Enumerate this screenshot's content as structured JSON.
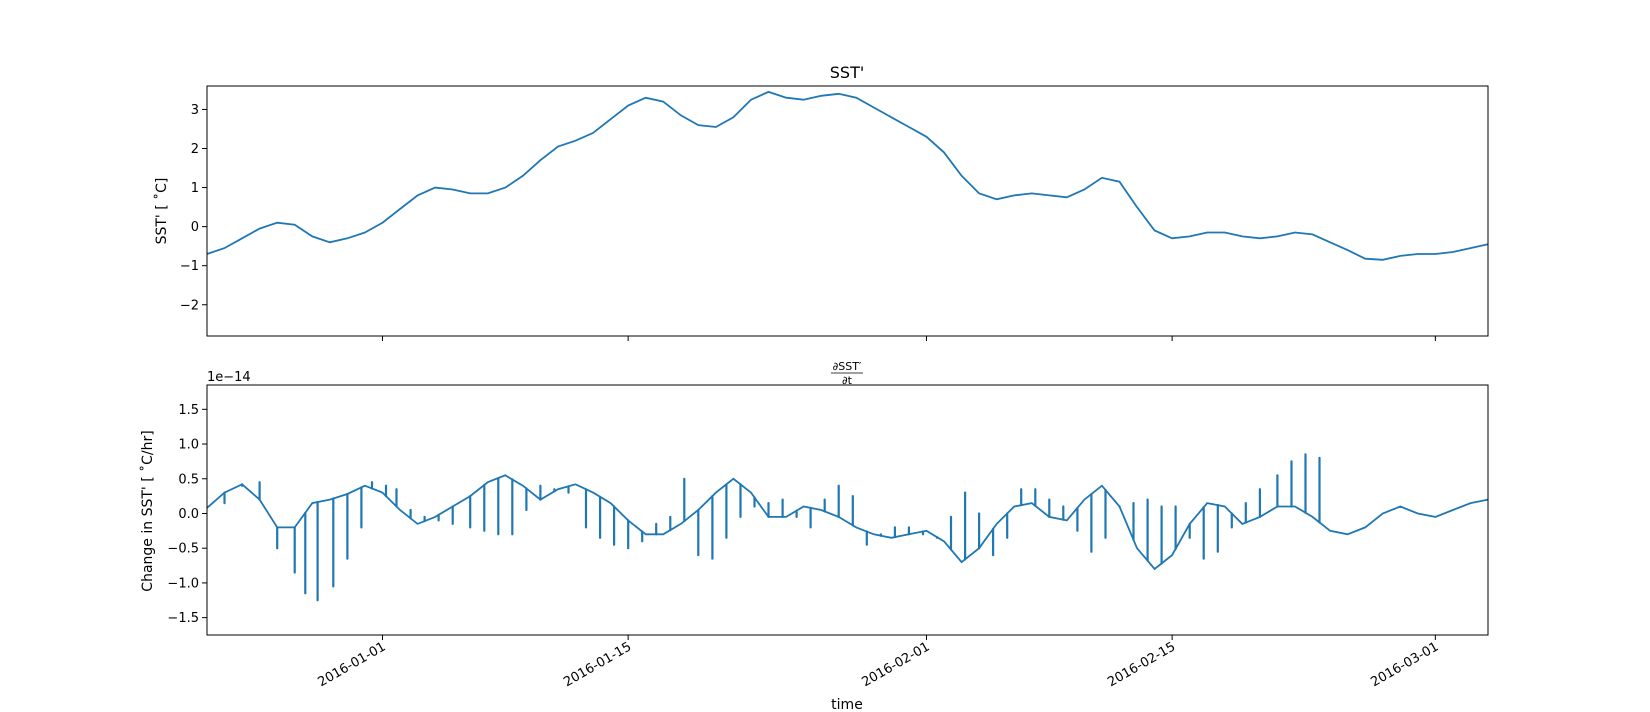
{
  "chart_data": [
    {
      "type": "line",
      "title": "SST'",
      "xlabel": "",
      "ylabel": "SST' [$^\\circ$C]",
      "ylabel_display": "SST' [ ˚C]",
      "ylim": [
        -2.8,
        3.6
      ],
      "yticks": [
        -2,
        -1,
        0,
        1,
        2,
        3
      ],
      "ytick_labels": [
        "−2",
        "−1",
        "0",
        "1",
        "2",
        "3"
      ],
      "xlim": [
        "2015-12-22",
        "2016-03-04"
      ],
      "xticks": [
        "2016-01-01",
        "2016-01-15",
        "2016-02-01",
        "2016-02-15",
        "2016-03-01"
      ],
      "grid": false,
      "color": "#1f77b4",
      "series": [
        {
          "x": [
            "2015-12-22",
            "2015-12-23",
            "2015-12-24",
            "2015-12-25",
            "2015-12-26",
            "2015-12-27",
            "2015-12-28",
            "2015-12-29",
            "2015-12-30",
            "2015-12-31",
            "2016-01-01",
            "2016-01-02",
            "2016-01-03",
            "2016-01-04",
            "2016-01-05",
            "2016-01-06",
            "2016-01-07",
            "2016-01-08",
            "2016-01-09",
            "2016-01-10",
            "2016-01-11",
            "2016-01-12",
            "2016-01-13",
            "2016-01-14",
            "2016-01-15",
            "2016-01-16",
            "2016-01-17",
            "2016-01-18",
            "2016-01-19",
            "2016-01-20",
            "2016-01-21",
            "2016-01-22",
            "2016-01-23",
            "2016-01-24",
            "2016-01-25",
            "2016-01-26",
            "2016-01-27",
            "2016-01-28",
            "2016-01-29",
            "2016-01-30",
            "2016-01-31",
            "2016-02-01",
            "2016-02-02",
            "2016-02-03",
            "2016-02-04",
            "2016-02-05",
            "2016-02-06",
            "2016-02-07",
            "2016-02-08",
            "2016-02-09",
            "2016-02-10",
            "2016-02-11",
            "2016-02-12",
            "2016-02-13",
            "2016-02-14",
            "2016-02-15",
            "2016-02-16",
            "2016-02-17",
            "2016-02-18",
            "2016-02-19",
            "2016-02-20",
            "2016-02-21",
            "2016-02-22",
            "2016-02-23",
            "2016-02-24",
            "2016-02-25",
            "2016-02-26",
            "2016-02-27",
            "2016-02-28",
            "2016-02-29",
            "2016-03-01",
            "2016-03-02",
            "2016-03-03",
            "2016-03-04"
          ],
          "values": [
            -0.7,
            -0.55,
            -0.3,
            -0.05,
            0.1,
            0.05,
            -0.25,
            -0.4,
            -0.3,
            -0.15,
            0.1,
            0.45,
            0.8,
            1.0,
            0.95,
            0.85,
            0.85,
            1.0,
            1.3,
            1.7,
            2.05,
            2.2,
            2.4,
            2.75,
            3.1,
            3.3,
            3.2,
            2.85,
            2.6,
            2.55,
            2.8,
            3.25,
            3.45,
            3.3,
            3.25,
            3.35,
            3.4,
            3.3,
            3.05,
            2.8,
            2.55,
            2.3,
            1.9,
            1.3,
            0.85,
            0.7,
            0.8,
            0.85,
            0.8,
            0.75,
            0.95,
            1.25,
            1.15,
            0.5,
            -0.1,
            -0.3,
            -0.25,
            -0.15,
            -0.15,
            -0.25,
            -0.3,
            -0.25,
            -0.15,
            -0.2,
            -0.4,
            -0.6,
            -0.82,
            -0.85,
            -0.75,
            -0.7,
            -0.7,
            -0.65,
            -0.55,
            -0.45
          ]
        }
      ]
    },
    {
      "type": "line",
      "title": "∂SST′/∂t",
      "title_numerator": "∂SST′",
      "title_denominator": "∂t",
      "xlabel": "time",
      "ylabel": "Change in SST' [$^\\circ$C/hr]",
      "ylabel_display": "Change in SST' [ ˚C/hr]",
      "offset_text": "1e−14",
      "ylim": [
        -1.75,
        1.85
      ],
      "yticks": [
        -1.5,
        -1.0,
        -0.5,
        0.0,
        0.5,
        1.0,
        1.5
      ],
      "ytick_labels": [
        "−1.5",
        "−1.0",
        "−0.5",
        "0.0",
        "0.5",
        "1.0",
        "1.5"
      ],
      "xlim": [
        "2015-12-22",
        "2016-03-04"
      ],
      "xticks": [
        "2016-01-01",
        "2016-01-15",
        "2016-02-01",
        "2016-02-15",
        "2016-03-01"
      ],
      "xtick_labels": [
        "2016-01-01",
        "2016-01-15",
        "2016-02-01",
        "2016-02-15",
        "2016-03-01"
      ],
      "grid": false,
      "color": "#1f77b4",
      "series": [
        {
          "x": [
            "2015-12-22",
            "2015-12-23",
            "2015-12-24",
            "2015-12-25",
            "2015-12-26",
            "2015-12-27",
            "2015-12-28",
            "2015-12-29",
            "2015-12-30",
            "2015-12-31",
            "2016-01-01",
            "2016-01-02",
            "2016-01-03",
            "2016-01-04",
            "2016-01-05",
            "2016-01-06",
            "2016-01-07",
            "2016-01-08",
            "2016-01-09",
            "2016-01-10",
            "2016-01-11",
            "2016-01-12",
            "2016-01-13",
            "2016-01-14",
            "2016-01-15",
            "2016-01-16",
            "2016-01-17",
            "2016-01-18",
            "2016-01-19",
            "2016-01-20",
            "2016-01-21",
            "2016-01-22",
            "2016-01-23",
            "2016-01-24",
            "2016-01-25",
            "2016-01-26",
            "2016-01-27",
            "2016-01-28",
            "2016-01-29",
            "2016-01-30",
            "2016-01-31",
            "2016-02-01",
            "2016-02-02",
            "2016-02-03",
            "2016-02-04",
            "2016-02-05",
            "2016-02-06",
            "2016-02-07",
            "2016-02-08",
            "2016-02-09",
            "2016-02-10",
            "2016-02-11",
            "2016-02-12",
            "2016-02-13",
            "2016-02-14",
            "2016-02-15",
            "2016-02-16",
            "2016-02-17",
            "2016-02-18",
            "2016-02-19",
            "2016-02-20",
            "2016-02-21",
            "2016-02-22",
            "2016-02-23",
            "2016-02-24",
            "2016-02-25",
            "2016-02-26",
            "2016-02-27",
            "2016-02-28",
            "2016-02-29",
            "2016-03-01",
            "2016-03-02",
            "2016-03-03",
            "2016-03-04"
          ],
          "values": [
            0.08,
            0.3,
            0.42,
            0.2,
            -0.2,
            -0.2,
            0.15,
            0.2,
            0.28,
            0.4,
            0.3,
            0.05,
            -0.15,
            -0.05,
            0.1,
            0.25,
            0.45,
            0.55,
            0.4,
            0.2,
            0.35,
            0.42,
            0.3,
            0.15,
            -0.1,
            -0.3,
            -0.3,
            -0.15,
            0.05,
            0.3,
            0.5,
            0.3,
            -0.05,
            -0.05,
            0.1,
            0.05,
            -0.05,
            -0.2,
            -0.3,
            -0.35,
            -0.3,
            -0.25,
            -0.4,
            -0.7,
            -0.5,
            -0.15,
            0.1,
            0.15,
            -0.05,
            -0.1,
            0.2,
            0.4,
            0.1,
            -0.5,
            -0.8,
            -0.6,
            -0.15,
            0.15,
            0.1,
            -0.15,
            -0.05,
            0.1,
            0.1,
            -0.05,
            -0.25,
            -0.3,
            -0.2,
            0.0,
            0.1,
            0.0,
            -0.05,
            0.05,
            0.15,
            0.2
          ]
        }
      ],
      "spikes": [
        {
          "x": "2015-12-23",
          "value": 0.15
        },
        {
          "x": "2015-12-24",
          "value": 0.4
        },
        {
          "x": "2015-12-25",
          "value": 0.45
        },
        {
          "x": "2015-12-26",
          "value": -0.5
        },
        {
          "x": "2015-12-27",
          "value": -0.85
        },
        {
          "x": "2015-12-27.6",
          "value": -1.15
        },
        {
          "x": "2015-12-28.3",
          "value": -1.25
        },
        {
          "x": "2015-12-29.2",
          "value": -1.05
        },
        {
          "x": "2015-12-30",
          "value": -0.65
        },
        {
          "x": "2015-12-30.8",
          "value": -0.2
        },
        {
          "x": "2015-12-31.4",
          "value": 0.45
        },
        {
          "x": "2016-01-01.2",
          "value": 0.4
        },
        {
          "x": "2016-01-01.8",
          "value": 0.35
        },
        {
          "x": "2016-01-02.6",
          "value": 0.05
        },
        {
          "x": "2016-01-03.4",
          "value": -0.05
        },
        {
          "x": "2016-01-04.2",
          "value": -0.1
        },
        {
          "x": "2016-01-05",
          "value": -0.15
        },
        {
          "x": "2016-01-06",
          "value": -0.2
        },
        {
          "x": "2016-01-06.8",
          "value": -0.25
        },
        {
          "x": "2016-01-07.6",
          "value": -0.3
        },
        {
          "x": "2016-01-08.4",
          "value": -0.3
        },
        {
          "x": "2016-01-09.2",
          "value": 0.05
        },
        {
          "x": "2016-01-10",
          "value": 0.4
        },
        {
          "x": "2016-01-10.8",
          "value": 0.35
        },
        {
          "x": "2016-01-11.6",
          "value": 0.3
        },
        {
          "x": "2016-01-12.6",
          "value": -0.2
        },
        {
          "x": "2016-01-13.4",
          "value": -0.35
        },
        {
          "x": "2016-01-14.2",
          "value": -0.45
        },
        {
          "x": "2016-01-15.0",
          "value": -0.5
        },
        {
          "x": "2016-01-15.8",
          "value": -0.4
        },
        {
          "x": "2016-01-16.6",
          "value": -0.15
        },
        {
          "x": "2016-01-17.4",
          "value": -0.05
        },
        {
          "x": "2016-01-18.2",
          "value": 0.5
        },
        {
          "x": "2016-01-19",
          "value": -0.6
        },
        {
          "x": "2016-01-19.8",
          "value": -0.65
        },
        {
          "x": "2016-01-20.6",
          "value": -0.35
        },
        {
          "x": "2016-01-21.4",
          "value": -0.05
        },
        {
          "x": "2016-01-22.2",
          "value": 0.1
        },
        {
          "x": "2016-01-23",
          "value": 0.15
        },
        {
          "x": "2016-01-23.8",
          "value": 0.2
        },
        {
          "x": "2016-01-24.6",
          "value": -0.05
        },
        {
          "x": "2016-01-25.4",
          "value": -0.2
        },
        {
          "x": "2016-01-26.2",
          "value": 0.2
        },
        {
          "x": "2016-01-27",
          "value": 0.4
        },
        {
          "x": "2016-01-27.8",
          "value": 0.25
        },
        {
          "x": "2016-01-28.6",
          "value": -0.45
        },
        {
          "x": "2016-01-29.4",
          "value": -0.3
        },
        {
          "x": "2016-01-30.2",
          "value": -0.2
        },
        {
          "x": "2016-01-31",
          "value": -0.2
        },
        {
          "x": "2016-01-31.8",
          "value": -0.3
        },
        {
          "x": "2016-02-01.6",
          "value": -0.35
        },
        {
          "x": "2016-02-02.4",
          "value": -0.05
        },
        {
          "x": "2016-02-03.2",
          "value": 0.3
        },
        {
          "x": "2016-02-04",
          "value": 0.0
        },
        {
          "x": "2016-02-04.8",
          "value": -0.6
        },
        {
          "x": "2016-02-05.6",
          "value": -0.35
        },
        {
          "x": "2016-02-06.4",
          "value": 0.35
        },
        {
          "x": "2016-02-07.2",
          "value": 0.35
        },
        {
          "x": "2016-02-08",
          "value": 0.2
        },
        {
          "x": "2016-02-08.8",
          "value": 0.1
        },
        {
          "x": "2016-02-09.6",
          "value": -0.25
        },
        {
          "x": "2016-02-10.4",
          "value": -0.55
        },
        {
          "x": "2016-02-11.2",
          "value": -0.35
        },
        {
          "x": "2016-02-12",
          "value": 0.1
        },
        {
          "x": "2016-02-12.8",
          "value": 0.15
        },
        {
          "x": "2016-02-13.6",
          "value": 0.2
        },
        {
          "x": "2016-02-14.4",
          "value": 0.1
        },
        {
          "x": "2016-02-15.2",
          "value": 0.1
        },
        {
          "x": "2016-02-16",
          "value": -0.35
        },
        {
          "x": "2016-02-16.8",
          "value": -0.65
        },
        {
          "x": "2016-02-17.6",
          "value": -0.55
        },
        {
          "x": "2016-02-18.4",
          "value": -0.2
        },
        {
          "x": "2016-02-19.2",
          "value": 0.15
        },
        {
          "x": "2016-02-20",
          "value": 0.35
        },
        {
          "x": "2016-02-21",
          "value": 0.55
        },
        {
          "x": "2016-02-21.8",
          "value": 0.75
        },
        {
          "x": "2016-02-22.6",
          "value": 0.85
        },
        {
          "x": "2016-02-23.4",
          "value": 0.8
        }
      ]
    }
  ]
}
